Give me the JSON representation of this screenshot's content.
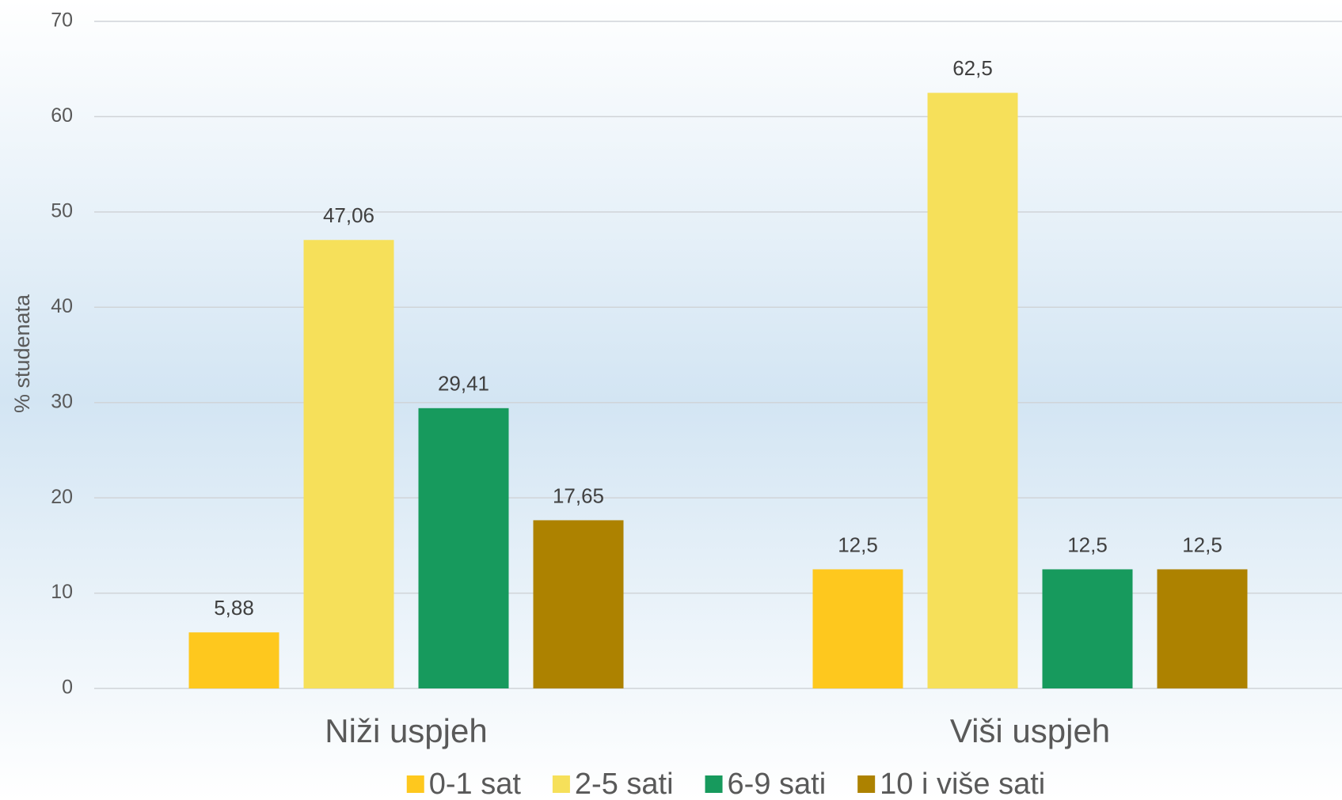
{
  "chart_data": {
    "type": "bar",
    "y_axis_label": "% studenata",
    "categories": [
      "Niži uspjeh",
      "Viši uspjeh"
    ],
    "series": [
      {
        "name": "0-1 sat",
        "color": "#fec81e",
        "values": [
          5.88,
          12.5
        ],
        "value_labels": [
          "5,88",
          "12,5"
        ]
      },
      {
        "name": "2-5 sati",
        "color": "#f6e05a",
        "values": [
          47.06,
          62.5
        ],
        "value_labels": [
          "47,06",
          "62,5"
        ]
      },
      {
        "name": "6-9 sati",
        "color": "#179a5d",
        "values": [
          29.41,
          12.5
        ],
        "value_labels": [
          "29,41",
          "12,5"
        ]
      },
      {
        "name": "10 i više sati",
        "color": "#ad8200",
        "values": [
          17.65,
          12.5
        ],
        "value_labels": [
          "17,65",
          "12,5"
        ]
      }
    ],
    "ylim": [
      0,
      70
    ],
    "yticks": [
      0,
      10,
      20,
      30,
      40,
      50,
      60,
      70
    ],
    "grid": true,
    "legend": "bottom"
  }
}
